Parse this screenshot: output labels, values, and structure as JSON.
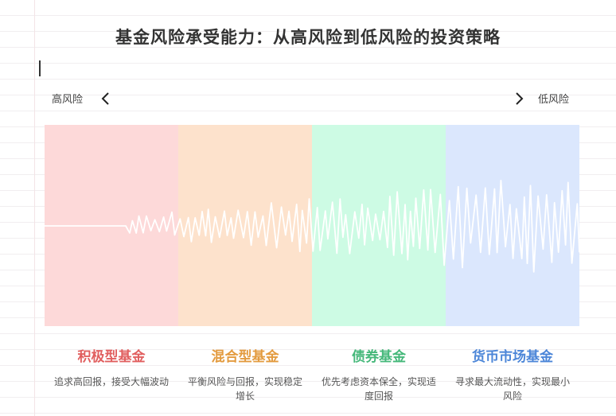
{
  "title": "基金风险承受能力：从高风险到低风险的投资策略",
  "scale": {
    "left_label": "高风险",
    "right_label": "低风险",
    "left_icon": "chevron-left-icon",
    "right_icon": "chevron-right-icon"
  },
  "categories": [
    {
      "name": "积极型基金",
      "desc": "追求高回报，接受大幅波动",
      "color": "#e15f5f",
      "bg": "#fdd9d9"
    },
    {
      "name": "混合型基金",
      "desc": "平衡风险与回报，实现稳定增长",
      "color": "#e39b3f",
      "bg": "#fde2cc"
    },
    {
      "name": "债券基金",
      "desc": "优先考虑资本保全，实现适度回报",
      "color": "#45b87a",
      "bg": "#cdfbe4"
    },
    {
      "name": "货币市场基金",
      "desc": "寻求最大流动性，实现最小风险",
      "color": "#4c86d8",
      "bg": "#dbe7fd"
    }
  ]
}
